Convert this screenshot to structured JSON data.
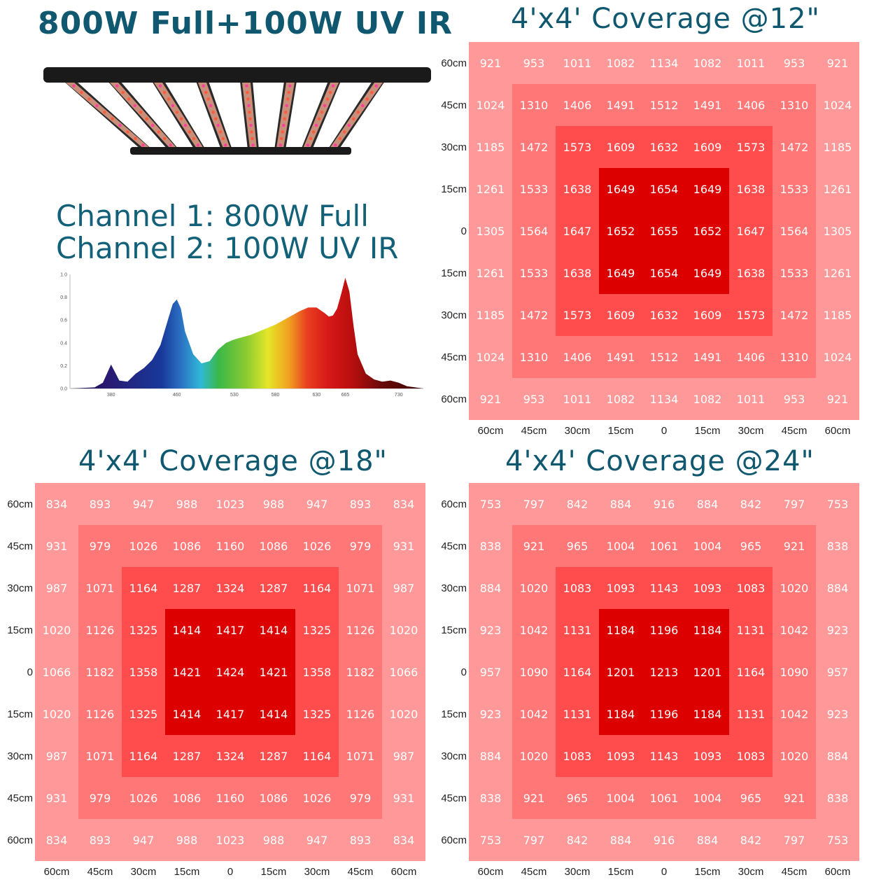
{
  "title": "800W Full+100W UV IR",
  "channels": {
    "ch1": "Channel 1: 800W Full",
    "ch2": "Channel 2: 100W UV IR"
  },
  "colors": {
    "title": "#0f5870",
    "ring_outer": "#ff9999",
    "ring_2": "#ff7777",
    "ring_3": "#ff4d4d",
    "ring_inner": "#dd0000",
    "fixture": "#1a1a1a"
  },
  "chart_data": [
    {
      "type": "area",
      "title": "",
      "xlabel": "",
      "ylabel": "",
      "ylim": [
        0,
        1.0
      ],
      "y_ticks": [
        "0.0",
        "0.2",
        "0.4",
        "0.6",
        "0.8",
        "1.0"
      ],
      "x_ticks": [
        380,
        460,
        530,
        580,
        630,
        665,
        730
      ],
      "x": [
        330,
        360,
        370,
        380,
        390,
        400,
        410,
        420,
        430,
        440,
        450,
        455,
        460,
        465,
        470,
        480,
        490,
        500,
        510,
        520,
        530,
        540,
        550,
        560,
        570,
        580,
        590,
        600,
        610,
        620,
        630,
        640,
        645,
        650,
        655,
        660,
        665,
        670,
        675,
        680,
        690,
        700,
        710,
        720,
        730,
        740,
        750,
        760
      ],
      "y": [
        0.0,
        0.01,
        0.05,
        0.21,
        0.07,
        0.06,
        0.13,
        0.18,
        0.25,
        0.38,
        0.62,
        0.74,
        0.78,
        0.7,
        0.5,
        0.3,
        0.22,
        0.24,
        0.34,
        0.4,
        0.43,
        0.45,
        0.47,
        0.5,
        0.53,
        0.56,
        0.6,
        0.64,
        0.68,
        0.71,
        0.71,
        0.66,
        0.63,
        0.64,
        0.7,
        0.83,
        0.97,
        0.85,
        0.55,
        0.3,
        0.13,
        0.08,
        0.06,
        0.07,
        0.05,
        0.02,
        0.01,
        0.0
      ]
    },
    {
      "type": "heatmap",
      "title": "4'x4' Coverage @12\"",
      "row_labels": [
        "60cm",
        "45cm",
        "30cm",
        "15cm",
        "0",
        "15cm",
        "30cm",
        "45cm",
        "60cm"
      ],
      "col_labels": [
        "60cm",
        "45cm",
        "30cm",
        "15cm",
        "0",
        "15cm",
        "30cm",
        "45cm",
        "60cm"
      ],
      "values": [
        [
          921,
          953,
          1011,
          1082,
          1134,
          1082,
          1011,
          953,
          921
        ],
        [
          1024,
          1310,
          1406,
          1491,
          1512,
          1491,
          1406,
          1310,
          1024
        ],
        [
          1185,
          1472,
          1573,
          1609,
          1632,
          1609,
          1573,
          1472,
          1185
        ],
        [
          1261,
          1533,
          1638,
          1649,
          1654,
          1649,
          1638,
          1533,
          1261
        ],
        [
          1305,
          1564,
          1647,
          1652,
          1655,
          1652,
          1647,
          1564,
          1305
        ],
        [
          1261,
          1533,
          1638,
          1649,
          1654,
          1649,
          1638,
          1533,
          1261
        ],
        [
          1185,
          1472,
          1573,
          1609,
          1632,
          1609,
          1573,
          1472,
          1185
        ],
        [
          1024,
          1310,
          1406,
          1491,
          1512,
          1491,
          1406,
          1310,
          1024
        ],
        [
          921,
          953,
          1011,
          1082,
          1134,
          1082,
          1011,
          953,
          921
        ]
      ]
    },
    {
      "type": "heatmap",
      "title": "4'x4' Coverage @18\"",
      "row_labels": [
        "60cm",
        "45cm",
        "30cm",
        "15cm",
        "0",
        "15cm",
        "30cm",
        "45cm",
        "60cm"
      ],
      "col_labels": [
        "60cm",
        "45cm",
        "30cm",
        "15cm",
        "0",
        "15cm",
        "30cm",
        "45cm",
        "60cm"
      ],
      "values": [
        [
          834,
          893,
          947,
          988,
          1023,
          988,
          947,
          893,
          834
        ],
        [
          931,
          979,
          1026,
          1086,
          1160,
          1086,
          1026,
          979,
          931
        ],
        [
          987,
          1071,
          1164,
          1287,
          1324,
          1287,
          1164,
          1071,
          987
        ],
        [
          1020,
          1126,
          1325,
          1414,
          1417,
          1414,
          1325,
          1126,
          1020
        ],
        [
          1066,
          1182,
          1358,
          1421,
          1424,
          1421,
          1358,
          1182,
          1066
        ],
        [
          1020,
          1126,
          1325,
          1414,
          1417,
          1414,
          1325,
          1126,
          1020
        ],
        [
          987,
          1071,
          1164,
          1287,
          1324,
          1287,
          1164,
          1071,
          987
        ],
        [
          931,
          979,
          1026,
          1086,
          1160,
          1086,
          1026,
          979,
          931
        ],
        [
          834,
          893,
          947,
          988,
          1023,
          988,
          947,
          893,
          834
        ]
      ]
    },
    {
      "type": "heatmap",
      "title": "4'x4' Coverage @24\"",
      "row_labels": [
        "60cm",
        "45cm",
        "30cm",
        "15cm",
        "0",
        "15cm",
        "30cm",
        "45cm",
        "60cm"
      ],
      "col_labels": [
        "60cm",
        "45cm",
        "30cm",
        "15cm",
        "0",
        "15cm",
        "30cm",
        "45cm",
        "60cm"
      ],
      "values": [
        [
          753,
          797,
          842,
          884,
          916,
          884,
          842,
          797,
          753
        ],
        [
          838,
          921,
          965,
          1004,
          1061,
          1004,
          965,
          921,
          838
        ],
        [
          884,
          1020,
          1083,
          1093,
          1143,
          1093,
          1083,
          1020,
          884
        ],
        [
          923,
          1042,
          1131,
          1184,
          1196,
          1184,
          1131,
          1042,
          923
        ],
        [
          957,
          1090,
          1164,
          1201,
          1213,
          1201,
          1164,
          1090,
          957
        ],
        [
          923,
          1042,
          1131,
          1184,
          1196,
          1184,
          1131,
          1042,
          923
        ],
        [
          884,
          1020,
          1083,
          1093,
          1143,
          1093,
          1083,
          1020,
          884
        ],
        [
          838,
          921,
          965,
          1004,
          1061,
          1004,
          965,
          921,
          838
        ],
        [
          753,
          797,
          842,
          884,
          916,
          884,
          842,
          797,
          753
        ]
      ]
    }
  ]
}
